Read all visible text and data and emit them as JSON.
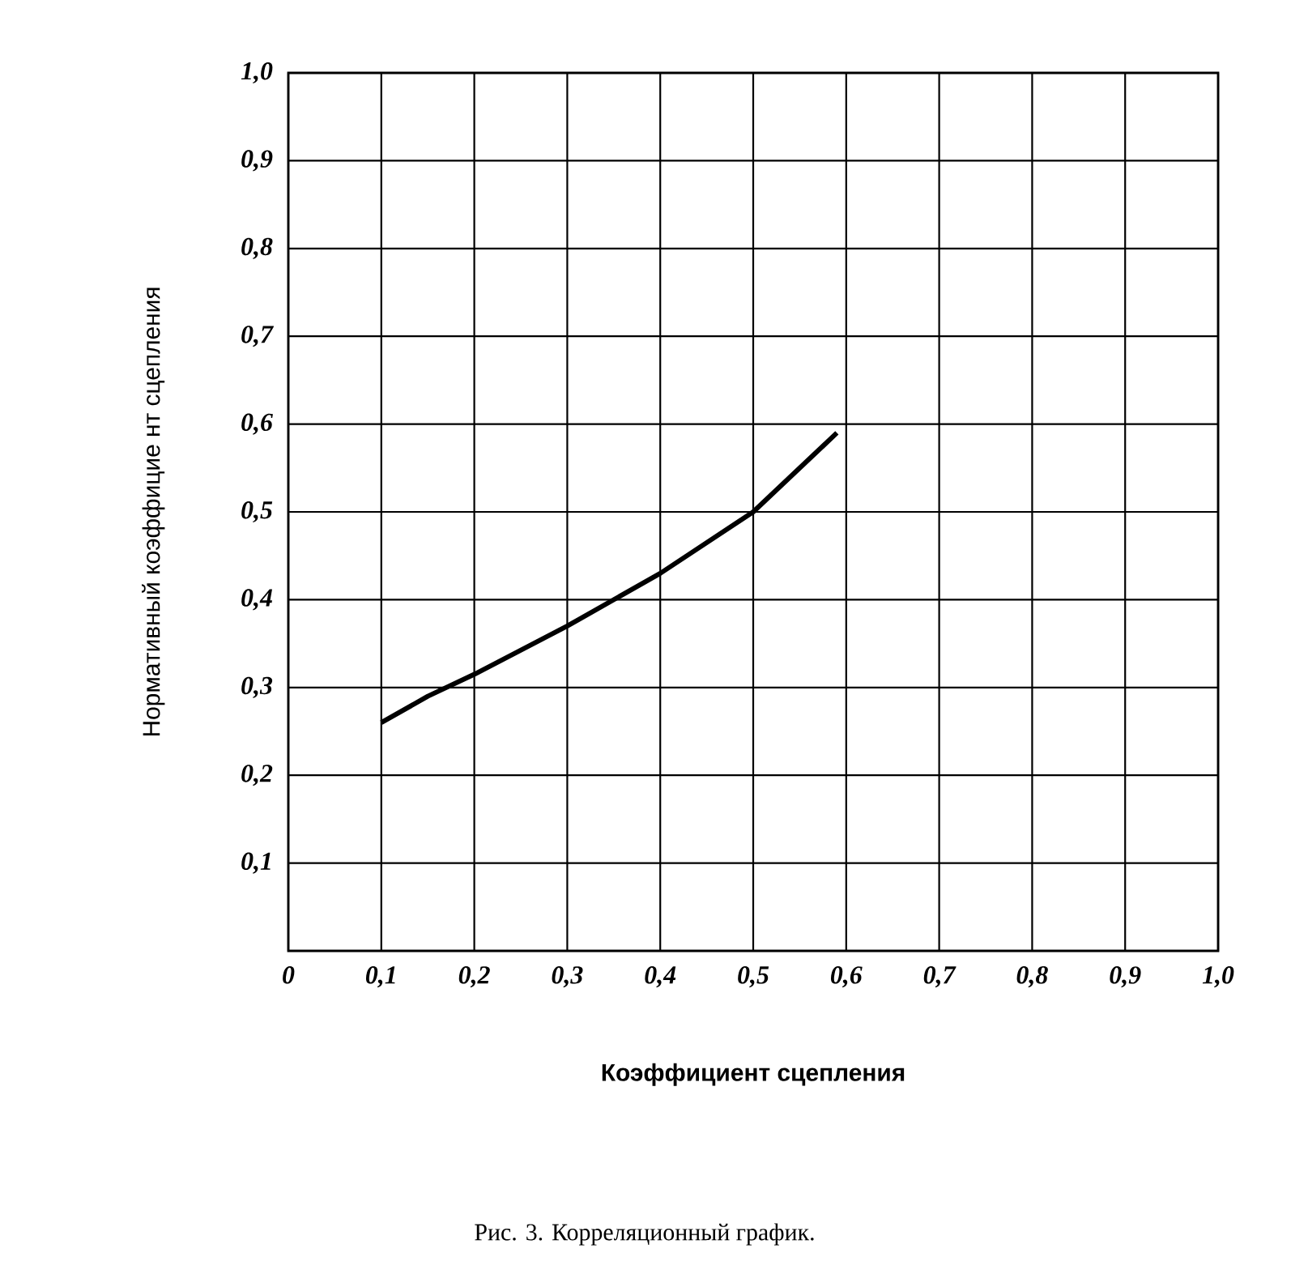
{
  "chart_data": {
    "type": "line",
    "xlabel": "Коэффициент сцепления",
    "ylabel": "Нормативный коэффицие нт сцепления",
    "annotations": [
      "Рис. 3. Корреляционный график."
    ],
    "x": [
      0.1,
      0.15,
      0.2,
      0.3,
      0.4,
      0.5,
      0.59
    ],
    "series": [
      {
        "color": "#000000",
        "values": [
          0.26,
          0.29,
          0.315,
          0.37,
          0.43,
          0.5,
          0.59
        ]
      }
    ],
    "xlim": [
      0,
      1
    ],
    "ylim": [
      0,
      1
    ],
    "xticks": [
      0,
      {
        "value": 0.1,
        "label": "0,1"
      },
      {
        "value": 0.2,
        "label": "0,2"
      },
      {
        "value": 0.3,
        "label": "0,3"
      },
      {
        "value": 0.4,
        "label": "0,4"
      },
      {
        "value": 0.5,
        "label": "0,5"
      },
      {
        "value": 0.6,
        "label": "0,6"
      },
      {
        "value": 0.7,
        "label": "0,7"
      },
      {
        "value": 0.8,
        "label": "0,8"
      },
      {
        "value": 0.9,
        "label": "0,9"
      },
      {
        "value": 1,
        "label": "1,0"
      }
    ],
    "yticks": [
      {
        "value": 0.1,
        "label": "0,1"
      },
      {
        "value": 0.2,
        "label": "0,2"
      },
      {
        "value": 0.3,
        "label": "0,3"
      },
      {
        "value": 0.4,
        "label": "0,4"
      },
      {
        "value": 0.5,
        "label": "0,5"
      },
      {
        "value": 0.6,
        "label": "0,6"
      },
      {
        "value": 0.7,
        "label": "0,7"
      },
      {
        "value": 0.8,
        "label": "0,8"
      },
      {
        "value": 0.9,
        "label": "0,9"
      },
      {
        "value": 1,
        "label": "1,0"
      }
    ],
    "grid": true
  }
}
